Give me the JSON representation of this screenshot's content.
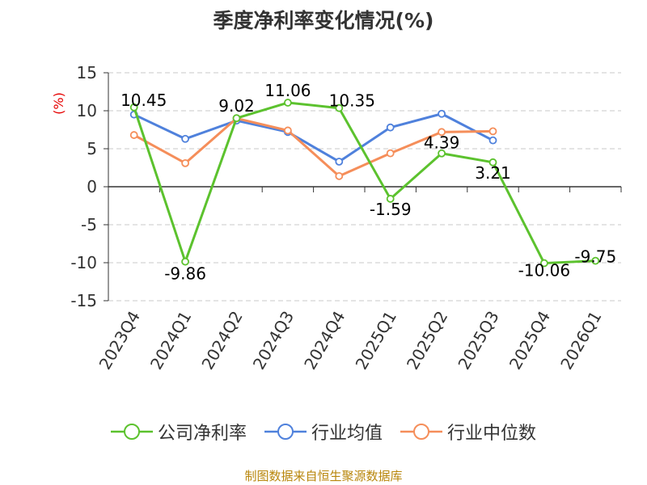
{
  "chart_data": {
    "type": "line",
    "title": "季度净利率变化情况(%)",
    "ylabel": "(%)",
    "categories": [
      "2023Q4",
      "2024Q1",
      "2024Q2",
      "2024Q3",
      "2024Q4",
      "2025Q1",
      "2025Q2",
      "2025Q3",
      "2025Q4",
      "2026Q1"
    ],
    "ylim": [
      -15,
      15
    ],
    "yticks": [
      15,
      10,
      5,
      0,
      -5,
      -10,
      -15
    ],
    "grid": true,
    "legend_position": "bottom",
    "series": [
      {
        "name": "公司净利率",
        "color": "#5cc22e",
        "values": [
          10.45,
          -9.86,
          9.02,
          11.06,
          10.35,
          -1.59,
          4.39,
          3.21,
          -10.06,
          -9.75
        ],
        "labels": [
          "10.45",
          "-9.86",
          "9.02",
          "11.06",
          "10.35",
          "-1.59",
          "4.39",
          "3.21",
          "-10.06",
          "-9.75"
        ]
      },
      {
        "name": "行业均值",
        "color": "#4f81dc",
        "values": [
          9.5,
          6.3,
          8.7,
          7.2,
          3.3,
          7.8,
          9.6,
          6.1,
          null,
          null
        ]
      },
      {
        "name": "行业中位数",
        "color": "#f58e5a",
        "values": [
          6.8,
          3.1,
          9.0,
          7.4,
          1.4,
          4.4,
          7.2,
          7.3,
          null,
          null
        ]
      }
    ]
  },
  "legend": {
    "items": [
      {
        "label": "公司净利率",
        "color": "#5cc22e"
      },
      {
        "label": "行业均值",
        "color": "#4f81dc"
      },
      {
        "label": "行业中位数",
        "color": "#f58e5a"
      }
    ]
  },
  "source_text": "制图数据来自恒生聚源数据库"
}
